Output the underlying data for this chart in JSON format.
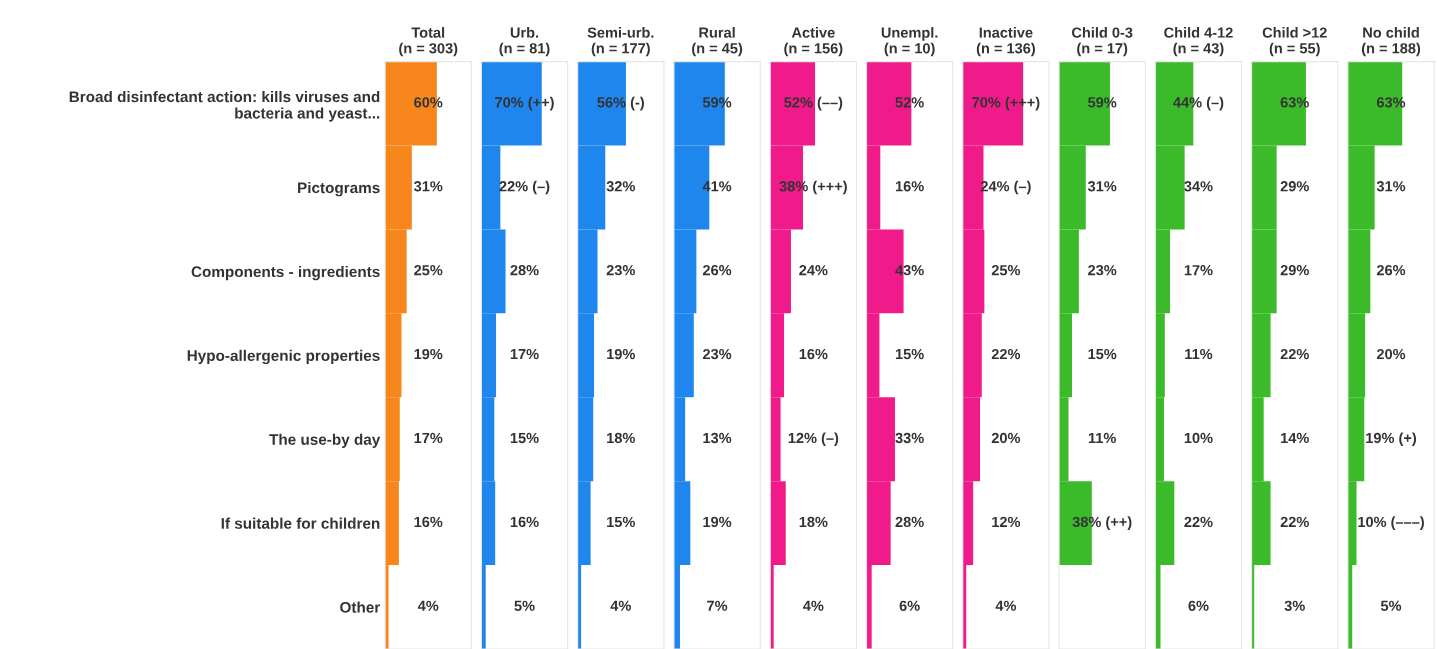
{
  "chart_data": [
    {
      "type": "bar",
      "orientation": "horizontal",
      "title": "Total\n(n = 303)",
      "categories": [
        "Broad disinfectant action: kills viruses and\nbacteria and yeast...",
        "Pictograms",
        "Components - ingredients",
        "Hypo-allergenic properties",
        "The use-by day",
        "If suitable for children",
        "Other"
      ],
      "values": [
        60,
        31,
        25,
        19,
        17,
        16,
        4
      ],
      "value_labels": [
        "60%",
        "31%",
        "25%",
        "19%",
        "17%",
        "16%",
        "4%"
      ],
      "color": "#f7861c",
      "xlim": [
        0,
        100
      ],
      "tick_labels": "y"
    },
    {
      "type": "bar",
      "orientation": "horizontal",
      "title": "Urb.\n(n = 81)",
      "categories": [
        null,
        null,
        null,
        null,
        null,
        null,
        null
      ],
      "values": [
        70,
        22,
        28,
        17,
        15,
        16,
        5
      ],
      "value_labels": [
        "70% (++)",
        "22% (–)",
        "28%",
        "17%",
        "15%",
        "16%",
        "5%"
      ],
      "color": "#1f86ee",
      "xlim": [
        0,
        100
      ],
      "tick_labels": false
    },
    {
      "type": "bar",
      "orientation": "horizontal",
      "title": "Semi-urb.\n(n = 177)",
      "categories": [
        null,
        null,
        null,
        null,
        null,
        null,
        null
      ],
      "values": [
        56,
        32,
        23,
        19,
        18,
        15,
        4
      ],
      "value_labels": [
        "56% (-)",
        "32%",
        "23%",
        "19%",
        "18%",
        "15%",
        "4%"
      ],
      "color": "#1f86ee",
      "xlim": [
        0,
        100
      ],
      "tick_labels": false
    },
    {
      "type": "bar",
      "orientation": "horizontal",
      "title": "Rural\n(n = 45)",
      "categories": [
        null,
        null,
        null,
        null,
        null,
        null,
        null
      ],
      "values": [
        59,
        41,
        26,
        23,
        13,
        19,
        7
      ],
      "value_labels": [
        "59%",
        "41%",
        "26%",
        "23%",
        "13%",
        "19%",
        "7%"
      ],
      "color": "#1f86ee",
      "xlim": [
        0,
        100
      ],
      "tick_labels": false
    },
    {
      "type": "bar",
      "orientation": "horizontal",
      "title": "Active\n(n = 156)",
      "categories": [
        null,
        null,
        null,
        null,
        null,
        null,
        null
      ],
      "values": [
        52,
        38,
        24,
        16,
        12,
        18,
        4
      ],
      "value_labels": [
        "52% (––)",
        "38% (+++)",
        "24%",
        "16%",
        "12% (–)",
        "18%",
        "4%"
      ],
      "color": "#f01a8a",
      "xlim": [
        0,
        100
      ],
      "tick_labels": false
    },
    {
      "type": "bar",
      "orientation": "horizontal",
      "title": "Unempl.\n(n = 10)",
      "categories": [
        null,
        null,
        null,
        null,
        null,
        null,
        null
      ],
      "values": [
        52,
        16,
        43,
        15,
        33,
        28,
        6
      ],
      "value_labels": [
        "52%",
        "16%",
        "43%",
        "15%",
        "33%",
        "28%",
        "6%"
      ],
      "color": "#f01a8a",
      "xlim": [
        0,
        100
      ],
      "tick_labels": false
    },
    {
      "type": "bar",
      "orientation": "horizontal",
      "title": "Inactive\n(n = 136)",
      "categories": [
        null,
        null,
        null,
        null,
        null,
        null,
        null
      ],
      "values": [
        70,
        24,
        25,
        22,
        20,
        12,
        4
      ],
      "value_labels": [
        "70% (+++)",
        "24% (–)",
        "25%",
        "22%",
        "20%",
        "12%",
        "4%"
      ],
      "color": "#f01a8a",
      "xlim": [
        0,
        100
      ],
      "tick_labels": false
    },
    {
      "type": "bar",
      "orientation": "horizontal",
      "title": "Child 0-3\n(n = 17)",
      "categories": [
        null,
        null,
        null,
        null,
        null,
        null,
        null
      ],
      "values": [
        59,
        31,
        23,
        15,
        11,
        38,
        null
      ],
      "value_labels": [
        "59%",
        "31%",
        "23%",
        "15%",
        "11%",
        "38% (++)",
        null
      ],
      "color": "#3cbb2a",
      "xlim": [
        0,
        100
      ],
      "tick_labels": false
    },
    {
      "type": "bar",
      "orientation": "horizontal",
      "title": "Child 4-12\n(n = 43)",
      "categories": [
        null,
        null,
        null,
        null,
        null,
        null,
        null
      ],
      "values": [
        44,
        34,
        17,
        11,
        10,
        22,
        6
      ],
      "value_labels": [
        "44% (–)",
        "34%",
        "17%",
        "11%",
        "10%",
        "22%",
        "6%"
      ],
      "color": "#3cbb2a",
      "xlim": [
        0,
        100
      ],
      "tick_labels": false
    },
    {
      "type": "bar",
      "orientation": "horizontal",
      "title": "Child >12\n(n = 55)",
      "categories": [
        null,
        null,
        null,
        null,
        null,
        null,
        null
      ],
      "values": [
        63,
        29,
        29,
        22,
        14,
        22,
        3
      ],
      "value_labels": [
        "63%",
        "29%",
        "29%",
        "22%",
        "14%",
        "22%",
        "3%"
      ],
      "color": "#3cbb2a",
      "xlim": [
        0,
        100
      ],
      "tick_labels": false
    },
    {
      "type": "bar",
      "orientation": "horizontal",
      "title": "No child\n(n = 188)",
      "categories": [
        null,
        null,
        null,
        null,
        null,
        null,
        null
      ],
      "values": [
        63,
        31,
        26,
        20,
        19,
        10,
        5
      ],
      "value_labels": [
        "63%",
        "31%",
        "26%",
        "20%",
        "19% (+)",
        "10% (–––)",
        "5%"
      ],
      "color": "#3cbb2a",
      "xlim": [
        0,
        100
      ],
      "tick_labels": false
    }
  ]
}
